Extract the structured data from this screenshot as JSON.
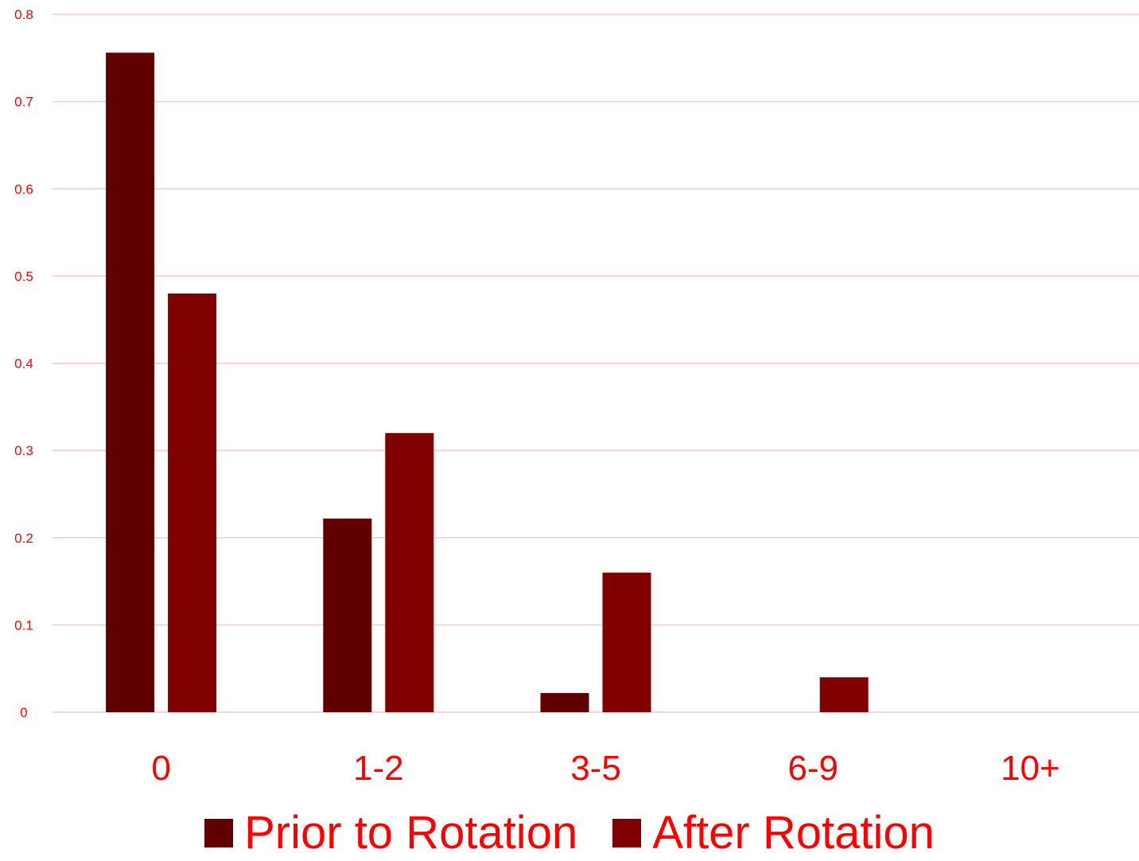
{
  "chart_data": {
    "type": "bar",
    "categories": [
      "0",
      "1-2",
      "3-5",
      "6-9",
      "10+"
    ],
    "series": [
      {
        "name": "Prior to Rotation",
        "color": "#600000",
        "values": [
          0.756,
          0.222,
          0.022,
          0,
          0
        ]
      },
      {
        "name": "After Rotation",
        "color": "#800000",
        "values": [
          0.48,
          0.32,
          0.16,
          0.04,
          0
        ]
      }
    ],
    "ylim": [
      0,
      0.8
    ],
    "yticks": [
      "0",
      "0.1",
      "0.2",
      "0.3",
      "0.4",
      "0.5",
      "0.6",
      "0.7",
      "0.8"
    ],
    "grid": true,
    "legend": "bottom",
    "text_color": "#ff0000",
    "grid_color": "#f6c8c8"
  }
}
